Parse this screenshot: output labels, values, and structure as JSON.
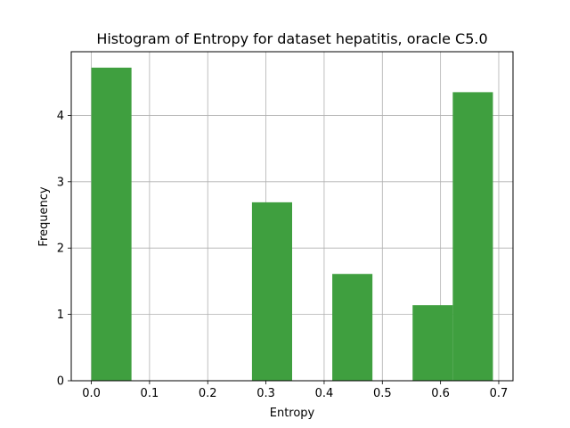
{
  "chart_data": {
    "type": "bar",
    "title": "Histogram of Entropy for dataset hepatitis, oracle C5.0",
    "xlabel": "Entropy",
    "ylabel": "Frequency",
    "xlim": [
      -0.0345,
      0.7245
    ],
    "ylim": [
      0,
      4.96
    ],
    "xticks": [
      0.0,
      0.1,
      0.2,
      0.3,
      0.4,
      0.5,
      0.6,
      0.7
    ],
    "xtick_labels": [
      "0.0",
      "0.1",
      "0.2",
      "0.3",
      "0.4",
      "0.5",
      "0.6",
      "0.7"
    ],
    "yticks": [
      0,
      1,
      2,
      3,
      4
    ],
    "ytick_labels": [
      "0",
      "1",
      "2",
      "3",
      "4"
    ],
    "grid": true,
    "bar_color": "#3f9f3f",
    "bins": [
      {
        "x0": 0.0,
        "x1": 0.069,
        "value": 4.72
      },
      {
        "x0": 0.069,
        "x1": 0.138,
        "value": 0
      },
      {
        "x0": 0.138,
        "x1": 0.207,
        "value": 0
      },
      {
        "x0": 0.207,
        "x1": 0.276,
        "value": 0
      },
      {
        "x0": 0.276,
        "x1": 0.345,
        "value": 2.69
      },
      {
        "x0": 0.345,
        "x1": 0.414,
        "value": 0
      },
      {
        "x0": 0.414,
        "x1": 0.483,
        "value": 1.61
      },
      {
        "x0": 0.483,
        "x1": 0.552,
        "value": 0
      },
      {
        "x0": 0.552,
        "x1": 0.621,
        "value": 1.14
      },
      {
        "x0": 0.621,
        "x1": 0.69,
        "value": 4.35
      }
    ]
  }
}
